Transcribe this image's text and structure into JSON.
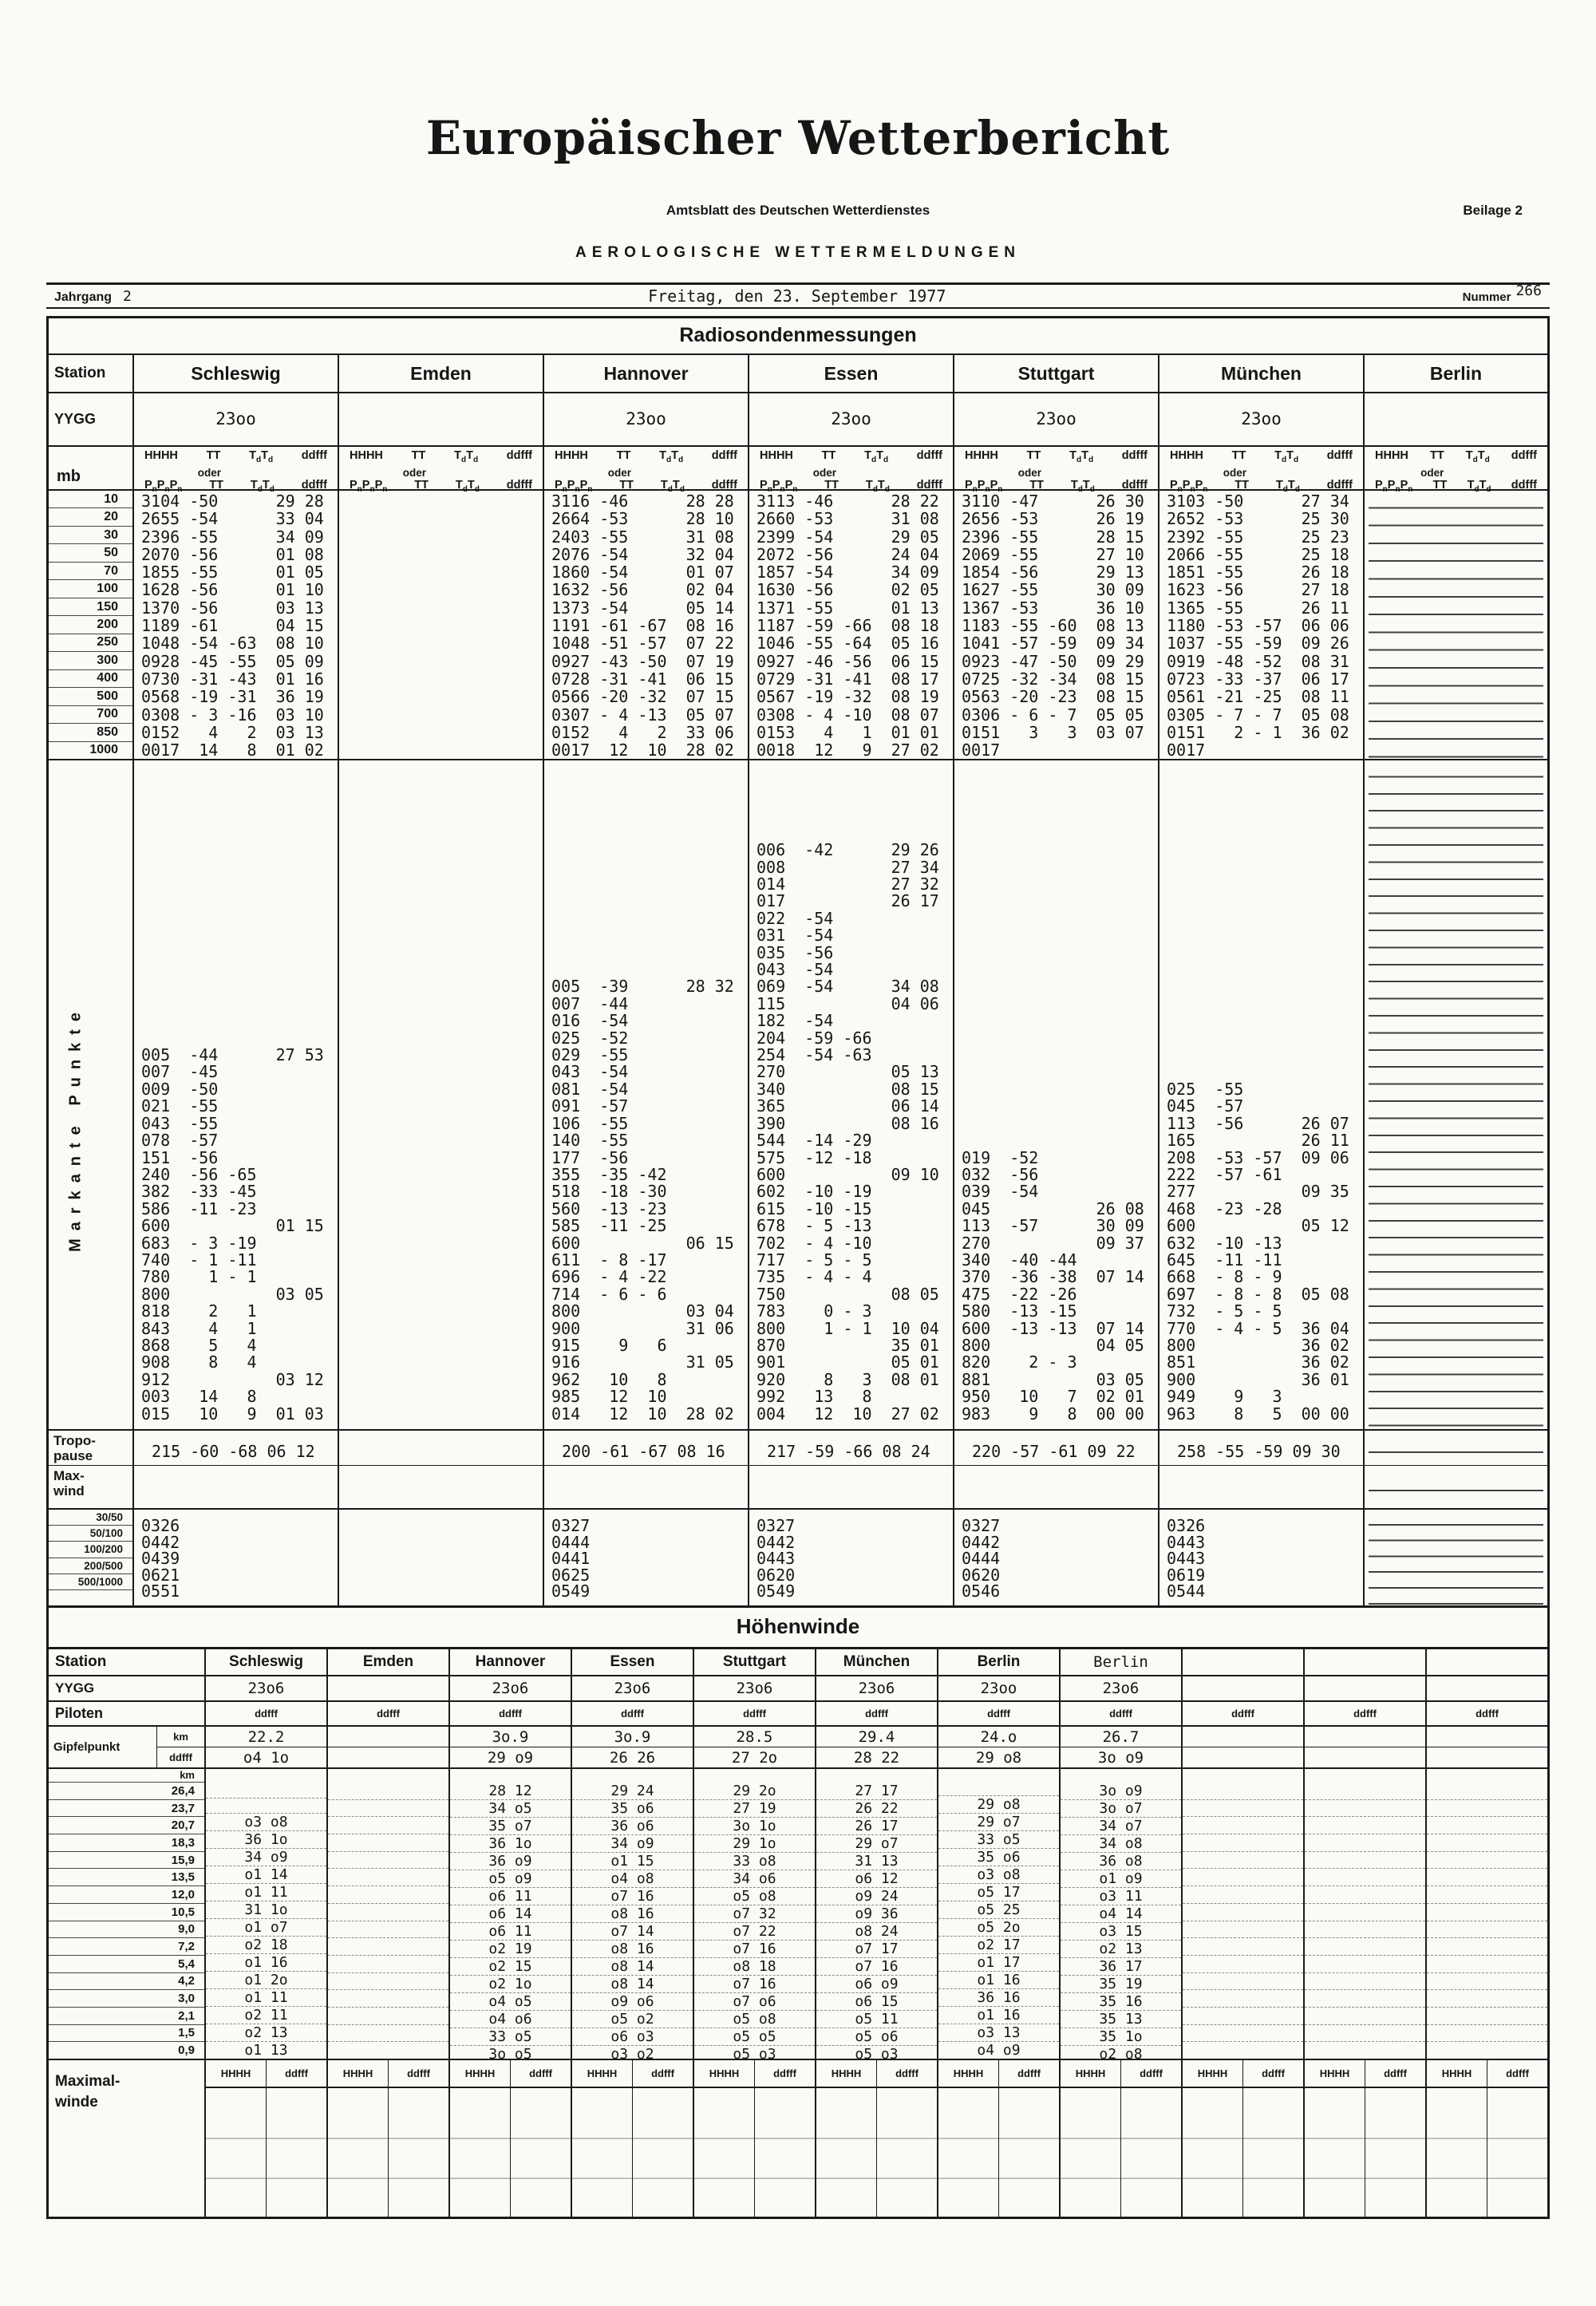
{
  "header": {
    "title": "Europäischer Wetterbericht",
    "subtitle": "Amtsblatt des Deutschen Wetterdienstes",
    "beilage": "Beilage 2",
    "section": "AEROLOGISCHE WETTERMELDUNGEN",
    "jahrgang_label": "Jahrgang",
    "jahrgang": "2",
    "date": "Freitag, den 23. September 1977",
    "nummer_label": "Nummer",
    "nummer": "266"
  },
  "radiosonde": {
    "title": "Radiosondenmessungen",
    "labels": {
      "station": "Station",
      "yygg": "YYGG",
      "mb": "mb",
      "header_row1": [
        "HHHH",
        "TT",
        "TdTd",
        "ddfff"
      ],
      "header_oder": "oder",
      "header_row2": [
        "PnPnPn",
        "TT",
        "TdTd",
        "ddfff"
      ],
      "markante": "Markante Punkte",
      "tropo1": "Tropo-",
      "tropo2": "pause",
      "max1": "Max-",
      "max2": "wind",
      "shear_rows": [
        "30/50",
        "50/100",
        "100/200",
        "200/500",
        "500/1000"
      ]
    },
    "mb_rows": [
      "10",
      "20",
      "30",
      "50",
      "70",
      "100",
      "150",
      "200",
      "250",
      "300",
      "400",
      "500",
      "700",
      "850",
      "1000"
    ],
    "stations": [
      {
        "name": "Schleswig",
        "yygg": "23oo",
        "ruled": false,
        "pressure": [
          "3104 -50      29 28",
          "2655 -54      33 04",
          "2396 -55      34 09",
          "2070 -56      01 08",
          "1855 -55      01 05",
          "1628 -56      01 10",
          "1370 -56      03 13",
          "1189 -61      04 15",
          "1048 -54 -63  08 10",
          "0928 -45 -55  05 09",
          "0730 -31 -43  01 16",
          "0568 -19 -31  36 19",
          "0308 - 3 -16  03 10",
          "0152   4   2  03 13",
          "0017  14   8  01 02"
        ],
        "markante": [
          "005  -44      27 53",
          "007  -45",
          "009  -50",
          "021  -55",
          "043  -55",
          "078  -57",
          "151  -56",
          "240  -56 -65",
          "382  -33 -45",
          "586  -11 -23",
          "600           01 15",
          "683  - 3 -19",
          "740  - 1 -11",
          "780    1 - 1",
          "800           03 05",
          "818    2   1",
          "843    4   1",
          "868    5   4",
          "908    8   4",
          "912           03 12",
          "003   14   8",
          "015   10   9  01 03"
        ],
        "tropo": "215 -60 -68 06 12",
        "shear": [
          "0326",
          "0442",
          "0439",
          "0621",
          "0551"
        ]
      },
      {
        "name": "Emden",
        "yygg": "",
        "ruled": false,
        "pressure": [],
        "markante": [],
        "tropo": "",
        "shear": []
      },
      {
        "name": "Hannover",
        "yygg": "23oo",
        "ruled": false,
        "pressure": [
          "3116 -46      28 28",
          "2664 -53      28 10",
          "2403 -55      31 08",
          "2076 -54      32 04",
          "1860 -54      01 07",
          "1632 -56      02 04",
          "1373 -54      05 14",
          "1191 -61 -67  08 16",
          "1048 -51 -57  07 22",
          "0927 -43 -50  07 19",
          "0728 -31 -41  06 15",
          "0566 -20 -32  07 15",
          "0307 - 4 -13  05 07",
          "0152   4   2  33 06",
          "0017  12  10  28 02"
        ],
        "markante": [
          "005  -39      28 32",
          "007  -44",
          "016  -54",
          "025  -52",
          "029  -55",
          "043  -54",
          "081  -54",
          "091  -57",
          "106  -55",
          "140  -55",
          "177  -56",
          "355  -35 -42",
          "518  -18 -30",
          "560  -13 -23",
          "585  -11 -25",
          "600           06 15",
          "611  - 8 -17",
          "696  - 4 -22",
          "714  - 6 - 6",
          "800           03 04",
          "900           31 06",
          "915    9   6",
          "916           31 05",
          "962   10   8",
          "985   12  10",
          "014   12  10  28 02"
        ],
        "tropo": "200 -61 -67 08 16",
        "shear": [
          "0327",
          "0444",
          "0441",
          "0625",
          "0549"
        ]
      },
      {
        "name": "Essen",
        "yygg": "23oo",
        "ruled": false,
        "pressure": [
          "3113 -46      28 22",
          "2660 -53      31 08",
          "2399 -54      29 05",
          "2072 -56      24 04",
          "1857 -54      34 09",
          "1630 -56      02 05",
          "1371 -55      01 13",
          "1187 -59 -66  08 18",
          "1046 -55 -64  05 16",
          "0927 -46 -56  06 15",
          "0729 -31 -41  08 17",
          "0567 -19 -32  08 19",
          "0308 - 4 -10  08 07",
          "0153   4   1  01 01",
          "0018  12   9  27 02"
        ],
        "markante": [
          "006  -42      29 26",
          "008           27 34",
          "014           27 32",
          "017           26 17",
          "022  -54",
          "031  -54",
          "035  -56",
          "043  -54",
          "069  -54      34 08",
          "115           04 06",
          "182  -54",
          "204  -59 -66",
          "254  -54 -63",
          "270           05 13",
          "340           08 15",
          "365           06 14",
          "390           08 16",
          "544  -14 -29",
          "575  -12 -18",
          "600           09 10",
          "602  -10 -19",
          "615  -10 -15",
          "678  - 5 -13",
          "702  - 4 -10",
          "717  - 5 - 5",
          "735  - 4 - 4",
          "750           08 05",
          "783    0 - 3",
          "800    1 - 1  10 04",
          "870           35 01",
          "901           05 01",
          "920    8   3  08 01",
          "992   13   8",
          "004   12  10  27 02"
        ],
        "tropo": "217 -59 -66 08 24",
        "shear": [
          "0327",
          "0442",
          "0443",
          "0620",
          "0549"
        ]
      },
      {
        "name": "Stuttgart",
        "yygg": "23oo",
        "ruled": false,
        "pressure": [
          "3110 -47      26 30",
          "2656 -53      26 19",
          "2396 -55      28 15",
          "2069 -55      27 10",
          "1854 -56      29 13",
          "1627 -55      30 09",
          "1367 -53      36 10",
          "1183 -55 -60  08 13",
          "1041 -57 -59  09 34",
          "0923 -47 -50  09 29",
          "0725 -32 -34  08 15",
          "0563 -20 -23  08 15",
          "0306 - 6 - 7  05 05",
          "0151   3   3  03 07",
          "0017"
        ],
        "markante": [
          "019  -52",
          "032  -56",
          "039  -54",
          "045           26 08",
          "113  -57      30 09",
          "270           09 37",
          "340  -40 -44",
          "370  -36 -38  07 14",
          "475  -22 -26",
          "580  -13 -15",
          "600  -13 -13  07 14",
          "800           04 05",
          "820    2 - 3",
          "881           03 05",
          "950   10   7  02 01",
          "983    9   8  00 00"
        ],
        "tropo": "220 -57 -61 09 22",
        "shear": [
          "0327",
          "0442",
          "0444",
          "0620",
          "0546"
        ]
      },
      {
        "name": "München",
        "yygg": "23oo",
        "ruled": false,
        "pressure": [
          "3103 -50      27 34",
          "2652 -53      25 30",
          "2392 -55      25 23",
          "2066 -55      25 18",
          "1851 -55      26 18",
          "1623 -56      27 18",
          "1365 -55      26 11",
          "1180 -53 -57  06 06",
          "1037 -55 -59  09 26",
          "0919 -48 -52  08 31",
          "0723 -33 -37  06 17",
          "0561 -21 -25  08 11",
          "0305 - 7 - 7  05 08",
          "0151   2 - 1  36 02",
          "0017"
        ],
        "markante": [
          "025  -55",
          "045  -57",
          "113  -56      26 07",
          "165           26 11",
          "208  -53 -57  09 06",
          "222  -57 -61",
          "277           09 35",
          "468  -23 -28",
          "600           05 12",
          "632  -10 -13",
          "645  -11 -11",
          "668  - 8 - 9",
          "697  - 8 - 8  05 08",
          "732  - 5 - 5",
          "770  - 4 - 5  36 04",
          "800           36 02",
          "851           36 02",
          "900           36 01",
          "949    9   3",
          "963    8   5  00 00"
        ],
        "tropo": "258 -55 -59 09 30",
        "shear": [
          "0326",
          "0443",
          "0443",
          "0619",
          "0544"
        ]
      },
      {
        "name": "Berlin",
        "yygg": "",
        "ruled": true,
        "pressure": [],
        "markante": [],
        "tropo": "",
        "shear": []
      }
    ]
  },
  "hoehenwinde": {
    "title": "Höhenwinde",
    "labels": {
      "station": "Station",
      "yygg": "YYGG",
      "piloten": "Piloten",
      "gipfelpunkt": "Gipfelpunkt",
      "km": "km",
      "ddfff": "ddfff",
      "hhhh": "HHHH",
      "maximal1": "Maximal-",
      "maximal2": "winde"
    },
    "km_rows": [
      "26,4",
      "23,7",
      "20,7",
      "18,3",
      "15,9",
      "13,5",
      "12,0",
      "10,5",
      "9,0",
      "7,2",
      "5,4",
      "4,2",
      "3,0",
      "2,1",
      "1,5",
      "0,9"
    ],
    "stations": [
      {
        "name": "Schleswig",
        "typed": false,
        "yygg": "23o6",
        "gipfel_km": "22.2",
        "gipfel_ddfff": "o4 1o",
        "winds": [
          "",
          "",
          "o3 o8",
          "36 1o",
          "34 o9",
          "o1 14",
          "o1 11",
          "31 1o",
          "o1 o7",
          "o2 18",
          "o1 16",
          "o1 2o",
          "o1 11",
          "o2 11",
          "o2 13",
          "o1 13"
        ]
      },
      {
        "name": "Emden",
        "typed": false,
        "yygg": "",
        "gipfel_km": "",
        "gipfel_ddfff": "",
        "winds": []
      },
      {
        "name": "Hannover",
        "typed": false,
        "yygg": "23o6",
        "gipfel_km": "3o.9",
        "gipfel_ddfff": "29 o9",
        "winds": [
          "28 12",
          "34 o5",
          "35 o7",
          "36 1o",
          "36 o9",
          "o5 o9",
          "o6 11",
          "o6 14",
          "o6 11",
          "o2 19",
          "o2 15",
          "o2 1o",
          "o4 o5",
          "o4 o6",
          "33 o5",
          "3o o5"
        ]
      },
      {
        "name": "Essen",
        "typed": false,
        "yygg": "23o6",
        "gipfel_km": "3o.9",
        "gipfel_ddfff": "26 26",
        "winds": [
          "29 24",
          "35 o6",
          "36 o6",
          "34 o9",
          "o1 15",
          "o4 o8",
          "o7 16",
          "o8 16",
          "o7 14",
          "o8 16",
          "o8 14",
          "o8 14",
          "o9 o6",
          "o5 o2",
          "o6 o3",
          "o3 o2"
        ]
      },
      {
        "name": "Stuttgart",
        "typed": false,
        "yygg": "23o6",
        "gipfel_km": "28.5",
        "gipfel_ddfff": "27 2o",
        "winds": [
          "29 2o",
          "27 19",
          "3o 1o",
          "29 1o",
          "33 o8",
          "34 o6",
          "o5 o8",
          "o7 32",
          "o7 22",
          "o7 16",
          "o8 18",
          "o7 16",
          "o7 o6",
          "o5 o8",
          "o5 o5",
          "o5 o3"
        ]
      },
      {
        "name": "München",
        "typed": false,
        "yygg": "23o6",
        "gipfel_km": "29.4",
        "gipfel_ddfff": "28 22",
        "winds": [
          "27 17",
          "26 22",
          "26 17",
          "29 o7",
          "31 13",
          "o6 12",
          "o9 24",
          "o9 36",
          "o8 24",
          "o7 17",
          "o7 16",
          "o6 o9",
          "o6 15",
          "o5 11",
          "o5 o6",
          "o5 o3"
        ]
      },
      {
        "name": "Berlin",
        "typed": false,
        "yygg": "23oo",
        "gipfel_km": "24.o",
        "gipfel_ddfff": "29 o8",
        "winds": [
          "",
          "29 o8",
          "29 o7",
          "33 o5",
          "35 o6",
          "o3 o8",
          "o5 17",
          "o5 25",
          "o5 2o",
          "o2 17",
          "o1 17",
          "o1 16",
          "36 16",
          "o1 16",
          "o3 13",
          "o4 o9"
        ]
      },
      {
        "name": "Berlin",
        "typed": true,
        "yygg": "23o6",
        "gipfel_km": "26.7",
        "gipfel_ddfff": "3o o9",
        "winds": [
          "3o o9",
          "3o o7",
          "34 o7",
          "34 o8",
          "36 o8",
          "o1 o9",
          "o3 11",
          "o4 14",
          "o3 15",
          "o2 13",
          "36 17",
          "35 19",
          "35 16",
          "35 13",
          "35 1o",
          "o2 o8"
        ]
      },
      {
        "name": "",
        "typed": false,
        "yygg": "",
        "gipfel_km": "",
        "gipfel_ddfff": "",
        "winds": []
      },
      {
        "name": "",
        "typed": false,
        "yygg": "",
        "gipfel_km": "",
        "gipfel_ddfff": "",
        "winds": []
      },
      {
        "name": "",
        "typed": false,
        "yygg": "",
        "gipfel_km": "",
        "gipfel_ddfff": "",
        "winds": []
      }
    ]
  }
}
